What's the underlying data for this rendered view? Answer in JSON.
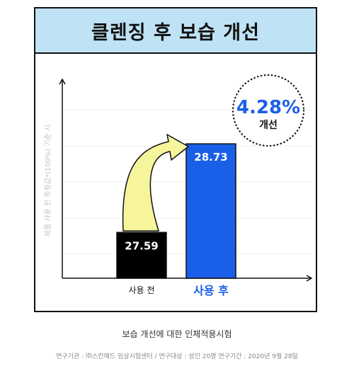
{
  "title": "클렌징 후 보습 개선",
  "badge": {
    "value": "4.28%",
    "label": "개선"
  },
  "colors": {
    "title_bg": "#bfe3f5",
    "bar_before": "#000000",
    "bar_after": "#1a5fe8",
    "after_label": "#1a5fe8",
    "badge_text": "#1a5fe8",
    "arrow_fill": "#f6f59c"
  },
  "chart_data": {
    "type": "bar",
    "categories": [
      "사용 전",
      "사용 후"
    ],
    "values": [
      27.59,
      28.73
    ],
    "ylabel": "제품 사용 전 측정값*(100%) 기준 시",
    "grid": true,
    "arrow": {
      "from": "사용 전",
      "to": "사용 후"
    }
  },
  "footer": {
    "caption": "보습 개선에 대한 인체적용시험",
    "details": "연구기관 : ㈜스킨메드 임상시험센터 / 연구대상 : 성인 20명 연구기간 : 2020년 9월 28일"
  }
}
